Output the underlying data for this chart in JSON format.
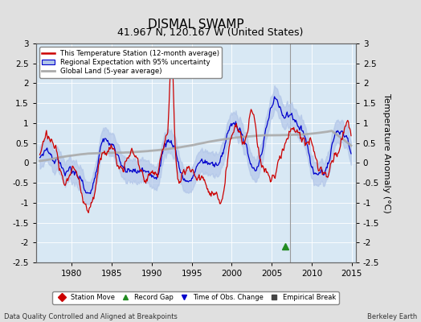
{
  "title": "DISMAL SWAMP",
  "subtitle": "41.967 N, 120.167 W (United States)",
  "ylabel": "Temperature Anomaly (°C)",
  "xlabel_left": "Data Quality Controlled and Aligned at Breakpoints",
  "xlabel_right": "Berkeley Earth",
  "ylim": [
    -2.5,
    3.0
  ],
  "xlim": [
    1975.5,
    2015.5
  ],
  "xticks": [
    1980,
    1985,
    1990,
    1995,
    2000,
    2005,
    2010,
    2015
  ],
  "yticks": [
    -2.5,
    -2,
    -1.5,
    -1,
    -0.5,
    0,
    0.5,
    1,
    1.5,
    2,
    2.5,
    3
  ],
  "ytick_labels": [
    "-2.5",
    "-2",
    "-1.5",
    "-1",
    "-0.5",
    "0",
    "0.5",
    "1",
    "1.5",
    "2",
    "2.5",
    "3"
  ],
  "bg_color": "#e0e0e0",
  "plot_bg_color": "#d8e8f4",
  "grid_color": "#ffffff",
  "red_line_color": "#cc0000",
  "blue_line_color": "#0000cc",
  "blue_fill_color": "#b0c4e8",
  "gray_line_color": "#aaaaaa",
  "vertical_line_x": 2007.3,
  "vertical_line_color": "#999999",
  "record_gap_x": 2006.7,
  "record_gap_y": -2.1,
  "legend_labels": [
    "This Temperature Station (12-month average)",
    "Regional Expectation with 95% uncertainty",
    "Global Land (5-year average)"
  ],
  "bottom_legend": [
    {
      "marker": "D",
      "color": "#cc0000",
      "label": "Station Move"
    },
    {
      "marker": "^",
      "color": "#228B22",
      "label": "Record Gap"
    },
    {
      "marker": "v",
      "color": "#0000cc",
      "label": "Time of Obs. Change"
    },
    {
      "marker": "s",
      "color": "#444444",
      "label": "Empirical Break"
    }
  ],
  "title_fontsize": 11,
  "subtitle_fontsize": 9,
  "tick_fontsize": 7.5,
  "ylabel_fontsize": 8
}
